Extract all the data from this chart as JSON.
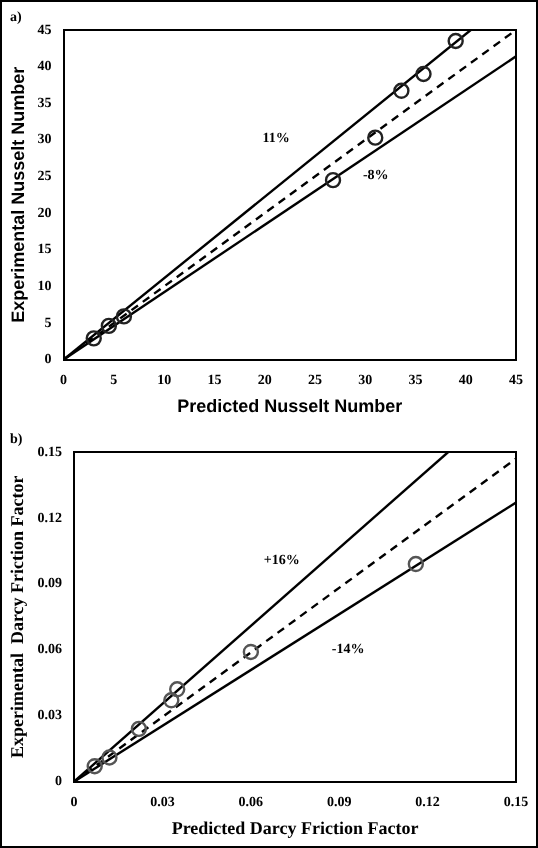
{
  "chart_data": [
    {
      "type": "scatter",
      "xlabel": "Predicted Nusselt Number",
      "ylabel": "Experimental Nusselt Number",
      "xlim": [
        0,
        45
      ],
      "ylim": [
        0,
        45
      ],
      "xticks": [
        0,
        5,
        10,
        15,
        20,
        25,
        30,
        35,
        40,
        45
      ],
      "yticks": [
        0,
        5,
        10,
        15,
        20,
        25,
        30,
        35,
        40,
        45
      ],
      "grid": false,
      "legend": false,
      "series": [
        {
          "marker": "circle",
          "color": "#222222",
          "x": [
            3,
            4.5,
            6,
            26.8,
            31,
            33.6,
            35.8,
            39
          ],
          "values": [
            2.9,
            4.6,
            5.9,
            24.5,
            30.3,
            36.7,
            39,
            43.5
          ]
        },
        {
          "type": "line",
          "color": "#000000",
          "line_style": "solid",
          "x": [
            0,
            40.5
          ],
          "values": [
            0,
            45
          ]
        },
        {
          "type": "line",
          "color": "#000000",
          "line_style": "solid",
          "x": [
            0,
            45
          ],
          "values": [
            0,
            41.4
          ]
        },
        {
          "type": "line",
          "color": "#000000",
          "line_style": "dashed",
          "x": [
            0,
            45
          ],
          "values": [
            0,
            45
          ]
        }
      ],
      "annotations": [
        "a)",
        "11%",
        "-8%"
      ]
    },
    {
      "type": "scatter",
      "xlabel": "Predicted Darcy Friction Factor",
      "ylabel": "Experimental  Darcy Friction Factor",
      "xlim": [
        0,
        0.15
      ],
      "ylim": [
        0,
        0.15
      ],
      "xticks": [
        0,
        0.03,
        0.06,
        0.09,
        0.12,
        0.15
      ],
      "yticks": [
        0,
        0.03,
        0.06,
        0.09,
        0.12,
        0.15
      ],
      "grid": false,
      "legend": false,
      "series": [
        {
          "marker": "circle",
          "color": "#555555",
          "x": [
            0.007,
            0.012,
            0.022,
            0.033,
            0.035,
            0.06,
            0.116
          ],
          "values": [
            0.007,
            0.011,
            0.024,
            0.037,
            0.042,
            0.059,
            0.099
          ]
        },
        {
          "type": "line",
          "color": "#000000",
          "line_style": "solid",
          "x": [
            0,
            0.127
          ],
          "values": [
            0,
            0.15
          ]
        },
        {
          "type": "line",
          "color": "#000000",
          "line_style": "solid",
          "x": [
            0,
            0.15
          ],
          "values": [
            0,
            0.127
          ]
        },
        {
          "type": "line",
          "color": "#000000",
          "line_style": "dashed",
          "x": [
            0,
            0.15
          ],
          "values": [
            0,
            0.147
          ]
        }
      ],
      "annotations": [
        "b)",
        "+16%",
        "-14%"
      ]
    }
  ]
}
